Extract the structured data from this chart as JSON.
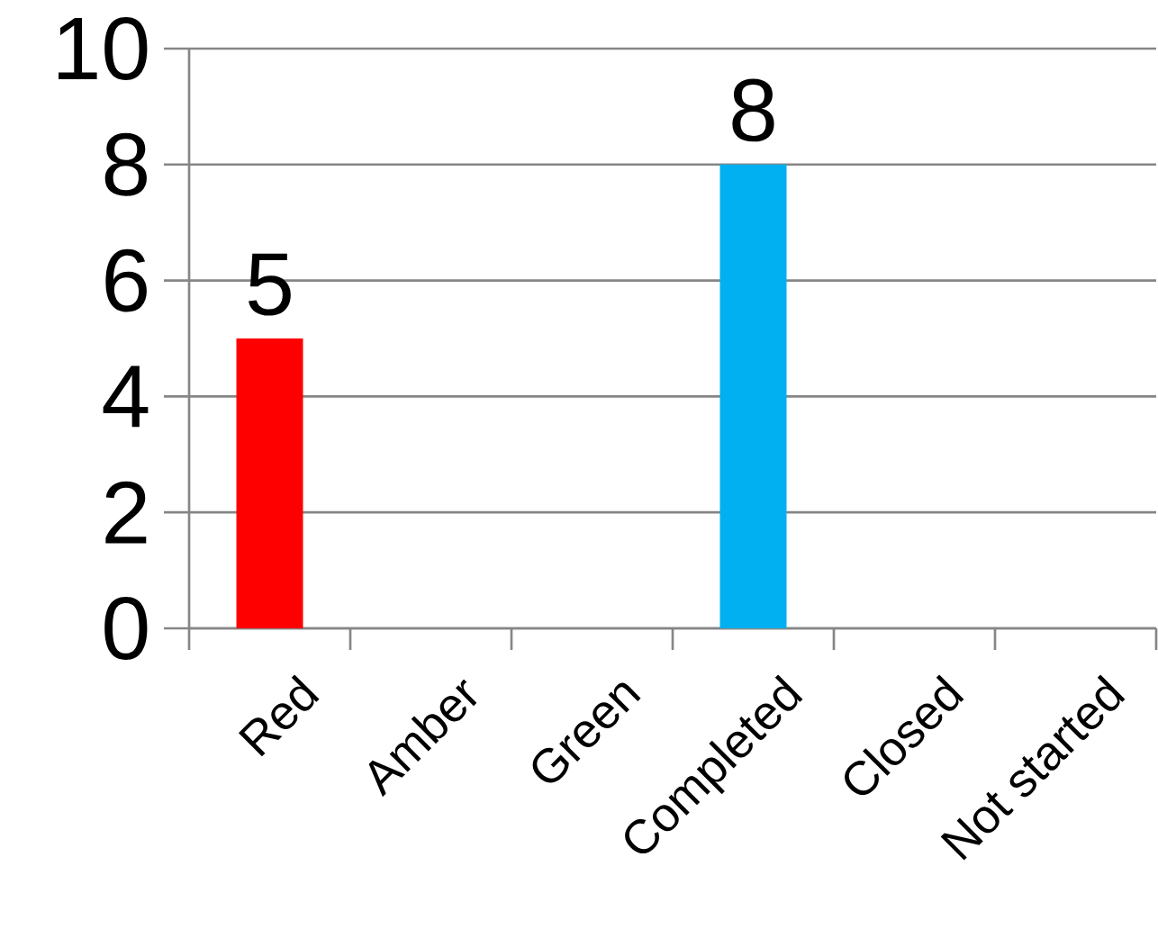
{
  "chart_data": {
    "type": "bar",
    "categories": [
      "Red",
      "Amber",
      "Green",
      "Completed",
      "Closed",
      "Not started"
    ],
    "values": [
      5,
      null,
      null,
      8,
      null,
      null
    ],
    "colors": [
      "#ff0000",
      null,
      null,
      "#00b0f0",
      null,
      null
    ],
    "value_labels": [
      "5",
      null,
      null,
      "8",
      null,
      null
    ],
    "ylim": [
      0,
      10
    ],
    "yticks": [
      0,
      2,
      4,
      6,
      8,
      10
    ],
    "grid": "y"
  }
}
